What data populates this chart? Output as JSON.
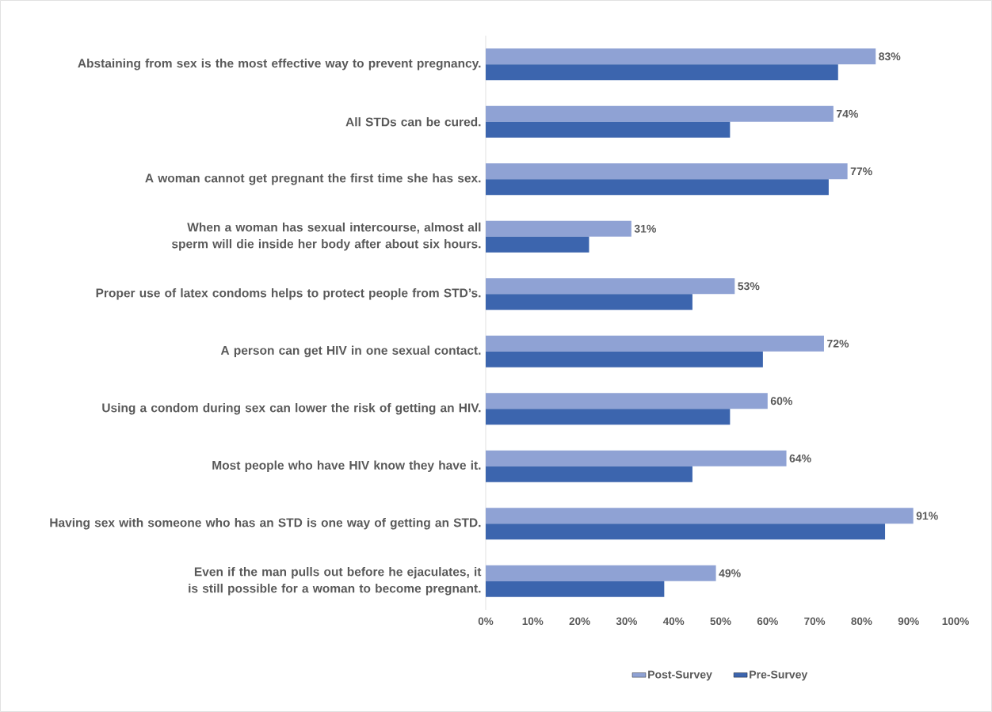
{
  "chart_data": {
    "type": "bar",
    "orientation": "horizontal",
    "categories": [
      "Abstaining from sex is the most effective way to prevent pregnancy.",
      "All STDs can be cured.",
      "A woman cannot get pregnant the first time she has sex.",
      "When a woman has sexual intercourse, almost all sperm will die inside her body after about six hours.",
      "Proper use of latex condoms helps to protect people from STD’s.",
      "A person can get HIV in one sexual contact.",
      "Using a condom during sex can lower the risk of getting an HIV.",
      "Most people who have HIV know they have it.",
      "Having sex with someone who has an STD is one way of getting an STD.",
      "Even if the man pulls out before he ejaculates, it is still possible for a woman to become pregnant."
    ],
    "series": [
      {
        "name": "Post-Survey",
        "color": "#8fa2d4",
        "values": [
          83,
          74,
          77,
          31,
          53,
          72,
          60,
          64,
          91,
          49
        ],
        "value_labels": [
          "83%",
          "74%",
          "77%",
          "31%",
          "53%",
          "72%",
          "60%",
          "64%",
          "91%",
          "49%"
        ]
      },
      {
        "name": "Pre-Survey",
        "color": "#3c65ae",
        "values": [
          75,
          52,
          73,
          22,
          44,
          59,
          52,
          44,
          85,
          38
        ]
      }
    ],
    "xlim": [
      0,
      100
    ],
    "xticks": [
      {
        "value": 0,
        "label": "0%"
      },
      {
        "value": 10,
        "label": "10%"
      },
      {
        "value": 20,
        "label": "20%"
      },
      {
        "value": 30,
        "label": "30%"
      },
      {
        "value": 40,
        "label": "40%"
      },
      {
        "value": 50,
        "label": "50%"
      },
      {
        "value": 60,
        "label": "60%"
      },
      {
        "value": 70,
        "label": "70%"
      },
      {
        "value": 80,
        "label": "80%"
      },
      {
        "value": 90,
        "label": "90%"
      },
      {
        "value": 100,
        "label": "100%"
      }
    ],
    "legend": "bottom"
  }
}
